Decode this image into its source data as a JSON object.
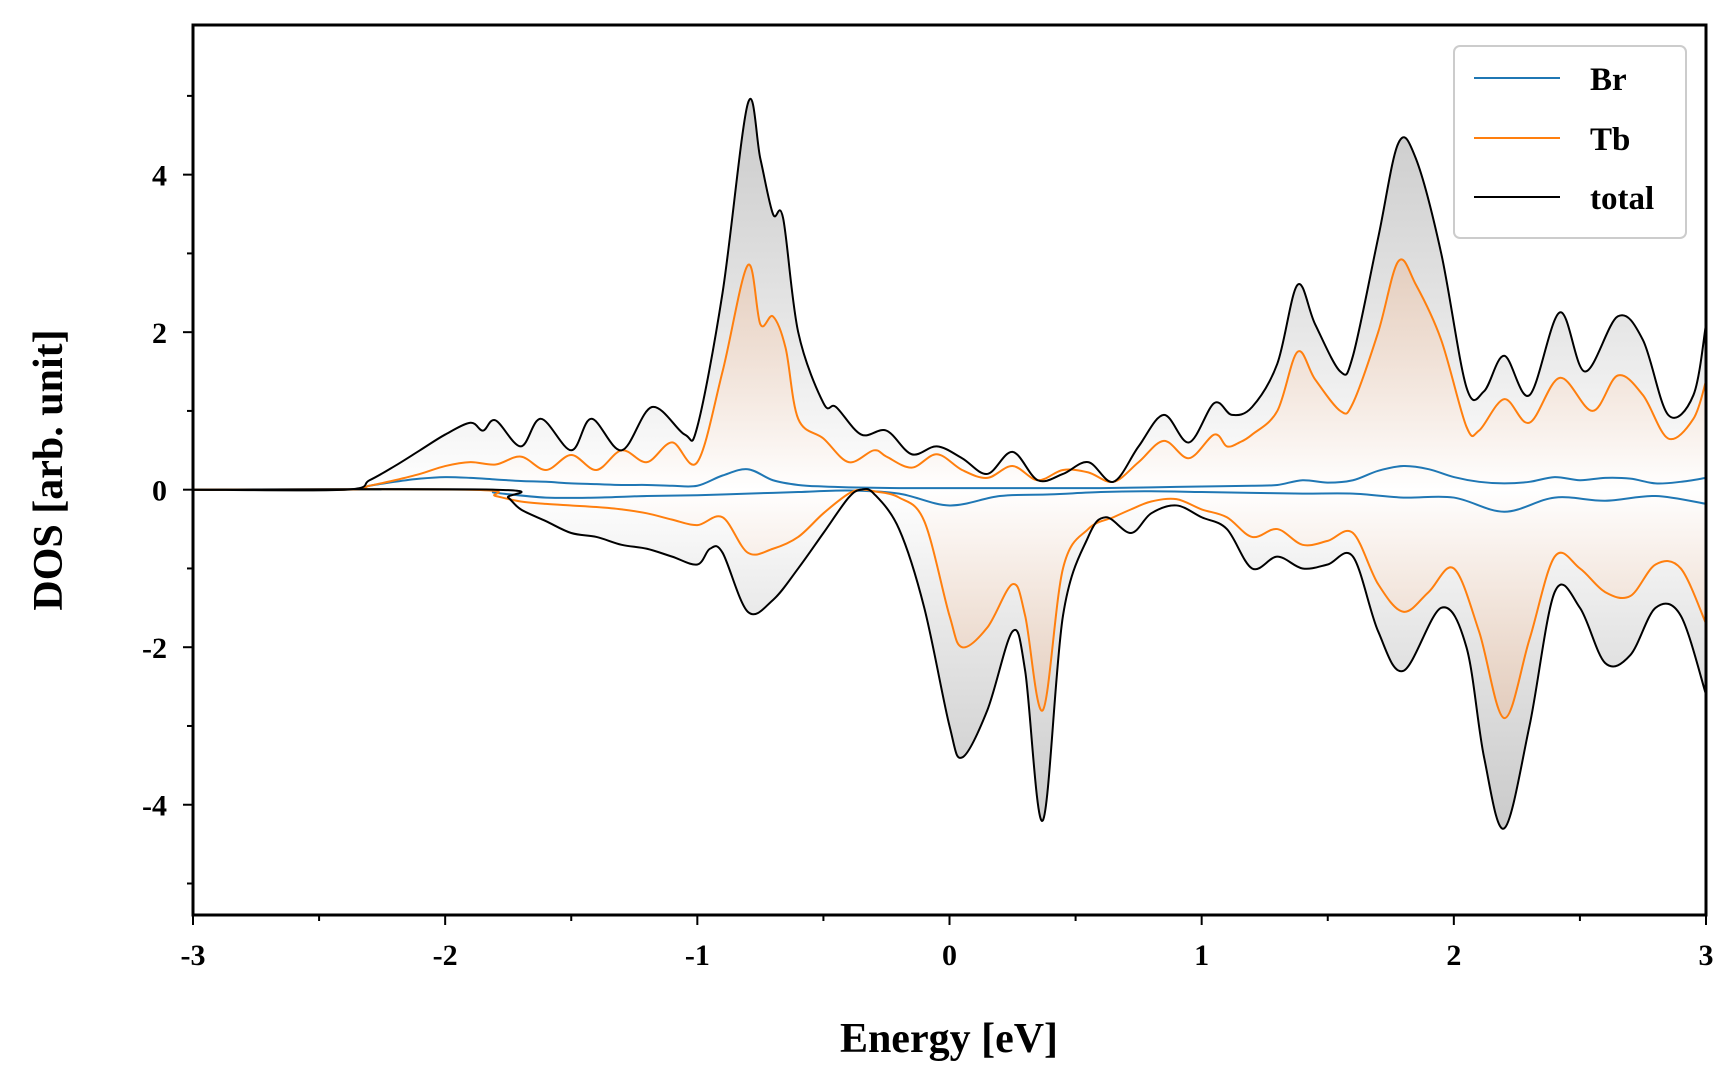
{
  "chart_data": {
    "type": "line",
    "title": "",
    "xlabel": "Energy [eV]",
    "ylabel": "DOS [arb. unit]",
    "xlim": [
      -3,
      3
    ],
    "ylim": [
      -5.4,
      5.9
    ],
    "x_ticks": [
      -3,
      -2,
      -1,
      0,
      1,
      2,
      3
    ],
    "x_ticklabels": [
      "-3",
      "-2",
      "-1",
      "0",
      "1",
      "2",
      "3"
    ],
    "x_minor_step": 0.5,
    "y_ticks": [
      -4,
      -2,
      0,
      2,
      4
    ],
    "y_ticklabels": [
      "-4",
      "-2",
      "0",
      "2",
      "4"
    ],
    "y_minor_step": 1,
    "grid": false,
    "legend_position": "top-right",
    "fill": "vertical gradient grey-white for total, peach-white for Tb, symmetric about zero",
    "series": [
      {
        "name": "Br",
        "color": "#1f77b4",
        "up": {
          "x": [
            -3,
            -2.4,
            -2.3,
            -2.2,
            -2.1,
            -2.0,
            -1.9,
            -1.8,
            -1.7,
            -1.6,
            -1.5,
            -1.4,
            -1.3,
            -1.2,
            -1.1,
            -1.0,
            -0.9,
            -0.8,
            -0.7,
            -0.6,
            -0.5,
            -0.4,
            -0.2,
            0,
            0.2,
            0.4,
            0.6,
            0.8,
            1.0,
            1.2,
            1.3,
            1.4,
            1.5,
            1.6,
            1.7,
            1.8,
            1.9,
            2.0,
            2.1,
            2.2,
            2.3,
            2.4,
            2.5,
            2.6,
            2.7,
            2.8,
            2.9,
            3.0
          ],
          "y": [
            0,
            0,
            0.05,
            0.1,
            0.14,
            0.16,
            0.15,
            0.13,
            0.11,
            0.1,
            0.08,
            0.07,
            0.06,
            0.06,
            0.05,
            0.05,
            0.18,
            0.26,
            0.12,
            0.06,
            0.04,
            0.03,
            0.02,
            0.02,
            0.02,
            0.02,
            0.02,
            0.03,
            0.04,
            0.05,
            0.06,
            0.12,
            0.09,
            0.12,
            0.24,
            0.3,
            0.26,
            0.16,
            0.1,
            0.08,
            0.1,
            0.16,
            0.12,
            0.15,
            0.14,
            0.08,
            0.1,
            0.15
          ]
        },
        "down": {
          "x": [
            -3,
            -1.9,
            -1.8,
            -1.6,
            -1.4,
            -1.2,
            -1.0,
            -0.8,
            -0.6,
            -0.4,
            -0.2,
            0,
            0.2,
            0.4,
            0.6,
            0.8,
            1.0,
            1.2,
            1.4,
            1.6,
            1.8,
            2.0,
            2.2,
            2.4,
            2.6,
            2.8,
            3.0
          ],
          "y": [
            0,
            0,
            -0.04,
            -0.1,
            -0.1,
            -0.08,
            -0.07,
            -0.05,
            -0.03,
            -0.01,
            -0.05,
            -0.2,
            -0.08,
            -0.06,
            -0.03,
            -0.02,
            -0.03,
            -0.04,
            -0.05,
            -0.05,
            -0.1,
            -0.1,
            -0.28,
            -0.1,
            -0.14,
            -0.08,
            -0.18
          ]
        }
      },
      {
        "name": "Tb",
        "color": "#ff7f0e",
        "up": {
          "x": [
            -3,
            -2.4,
            -2.3,
            -2.2,
            -2.1,
            -2.0,
            -1.9,
            -1.8,
            -1.7,
            -1.6,
            -1.5,
            -1.4,
            -1.3,
            -1.2,
            -1.1,
            -1.0,
            -0.9,
            -0.8,
            -0.75,
            -0.7,
            -0.65,
            -0.6,
            -0.5,
            -0.4,
            -0.3,
            -0.25,
            -0.15,
            -0.05,
            0.05,
            0.15,
            0.25,
            0.35,
            0.45,
            0.55,
            0.65,
            0.75,
            0.85,
            0.95,
            1.05,
            1.1,
            1.15,
            1.2,
            1.3,
            1.38,
            1.45,
            1.55,
            1.6,
            1.7,
            1.78,
            1.85,
            1.95,
            2.05,
            2.1,
            2.2,
            2.3,
            2.42,
            2.55,
            2.65,
            2.75,
            2.85,
            2.95,
            3.0
          ],
          "y": [
            0,
            0,
            0.05,
            0.12,
            0.2,
            0.3,
            0.35,
            0.32,
            0.42,
            0.25,
            0.44,
            0.25,
            0.5,
            0.35,
            0.6,
            0.35,
            1.5,
            2.85,
            2.1,
            2.2,
            1.8,
            0.9,
            0.65,
            0.35,
            0.5,
            0.42,
            0.28,
            0.45,
            0.25,
            0.15,
            0.3,
            0.12,
            0.25,
            0.22,
            0.1,
            0.35,
            0.62,
            0.4,
            0.7,
            0.55,
            0.6,
            0.7,
            1.0,
            1.75,
            1.4,
            1.0,
            1.1,
            2.0,
            2.9,
            2.6,
            1.9,
            0.8,
            0.75,
            1.15,
            0.85,
            1.42,
            1.0,
            1.45,
            1.2,
            0.65,
            0.9,
            1.38
          ]
        },
        "down": {
          "x": [
            -3,
            -1.9,
            -1.8,
            -1.7,
            -1.6,
            -1.5,
            -1.4,
            -1.3,
            -1.2,
            -1.1,
            -1.0,
            -0.9,
            -0.8,
            -0.7,
            -0.6,
            -0.5,
            -0.4,
            -0.35,
            -0.3,
            -0.2,
            -0.1,
            0,
            0.05,
            0.15,
            0.25,
            0.3,
            0.37,
            0.45,
            0.55,
            0.65,
            0.72,
            0.8,
            0.9,
            1.0,
            1.1,
            1.2,
            1.3,
            1.4,
            1.5,
            1.6,
            1.7,
            1.8,
            1.9,
            2.0,
            2.1,
            2.2,
            2.3,
            2.4,
            2.5,
            2.6,
            2.7,
            2.8,
            2.9,
            3.0
          ],
          "y": [
            0,
            0,
            -0.08,
            -0.15,
            -0.18,
            -0.2,
            -0.22,
            -0.25,
            -0.3,
            -0.38,
            -0.45,
            -0.35,
            -0.8,
            -0.75,
            -0.6,
            -0.3,
            -0.05,
            0,
            -0.02,
            -0.1,
            -0.4,
            -1.6,
            -2.0,
            -1.75,
            -1.2,
            -1.6,
            -2.8,
            -1.0,
            -0.5,
            -0.35,
            -0.25,
            -0.15,
            -0.12,
            -0.25,
            -0.35,
            -0.6,
            -0.5,
            -0.7,
            -0.65,
            -0.55,
            -1.2,
            -1.55,
            -1.3,
            -1.0,
            -1.8,
            -2.9,
            -1.9,
            -0.85,
            -1.0,
            -1.3,
            -1.35,
            -0.95,
            -1.0,
            -1.7
          ]
        }
      },
      {
        "name": "total",
        "color": "#000000",
        "up": {
          "x": [
            -3,
            -2.4,
            -2.3,
            -2.2,
            -2.1,
            -2.0,
            -1.9,
            -1.85,
            -1.8,
            -1.7,
            -1.62,
            -1.5,
            -1.42,
            -1.3,
            -1.18,
            -1.05,
            -1.0,
            -0.9,
            -0.8,
            -0.75,
            -0.7,
            -0.66,
            -0.6,
            -0.5,
            -0.45,
            -0.35,
            -0.25,
            -0.15,
            -0.05,
            0.05,
            0.15,
            0.25,
            0.35,
            0.45,
            0.55,
            0.65,
            0.75,
            0.85,
            0.95,
            1.05,
            1.12,
            1.2,
            1.3,
            1.38,
            1.45,
            1.55,
            1.6,
            1.7,
            1.78,
            1.85,
            1.95,
            2.05,
            2.12,
            2.2,
            2.3,
            2.42,
            2.52,
            2.65,
            2.75,
            2.85,
            2.95,
            3.0
          ],
          "y": [
            0,
            0,
            0.12,
            0.3,
            0.5,
            0.7,
            0.85,
            0.75,
            0.88,
            0.55,
            0.9,
            0.5,
            0.9,
            0.5,
            1.05,
            0.7,
            0.8,
            2.5,
            4.9,
            4.2,
            3.5,
            3.45,
            2.0,
            1.1,
            1.05,
            0.7,
            0.75,
            0.45,
            0.55,
            0.4,
            0.2,
            0.48,
            0.12,
            0.2,
            0.35,
            0.1,
            0.55,
            0.95,
            0.6,
            1.1,
            0.95,
            1.05,
            1.6,
            2.6,
            2.1,
            1.5,
            1.7,
            3.2,
            4.4,
            4.2,
            3.0,
            1.3,
            1.25,
            1.7,
            1.2,
            2.25,
            1.5,
            2.2,
            1.9,
            0.95,
            1.2,
            2.1
          ]
        },
        "down": {
          "x": [
            -3,
            -1.8,
            -1.75,
            -1.7,
            -1.6,
            -1.5,
            -1.4,
            -1.3,
            -1.2,
            -1.1,
            -1.0,
            -0.95,
            -0.9,
            -0.8,
            -0.7,
            -0.6,
            -0.5,
            -0.4,
            -0.35,
            -0.3,
            -0.2,
            -0.1,
            0,
            0.05,
            0.15,
            0.25,
            0.3,
            0.37,
            0.45,
            0.55,
            0.62,
            0.72,
            0.8,
            0.9,
            1.0,
            1.1,
            1.2,
            1.3,
            1.4,
            1.5,
            1.6,
            1.7,
            1.8,
            1.95,
            2.05,
            2.12,
            2.2,
            2.3,
            2.4,
            2.5,
            2.6,
            2.7,
            2.8,
            2.9,
            3.0
          ],
          "y": [
            0,
            0,
            -0.1,
            -0.25,
            -0.4,
            -0.55,
            -0.6,
            -0.7,
            -0.75,
            -0.85,
            -0.95,
            -0.75,
            -0.8,
            -1.55,
            -1.4,
            -1.0,
            -0.55,
            -0.1,
            0,
            -0.05,
            -0.5,
            -1.5,
            -3.0,
            -3.4,
            -2.8,
            -1.8,
            -2.3,
            -4.2,
            -1.6,
            -0.6,
            -0.35,
            -0.55,
            -0.3,
            -0.2,
            -0.35,
            -0.5,
            -1.0,
            -0.85,
            -1.0,
            -0.95,
            -0.85,
            -1.8,
            -2.3,
            -1.5,
            -2.0,
            -3.4,
            -4.3,
            -3.0,
            -1.3,
            -1.5,
            -2.2,
            -2.1,
            -1.5,
            -1.6,
            -2.6
          ]
        }
      }
    ]
  }
}
